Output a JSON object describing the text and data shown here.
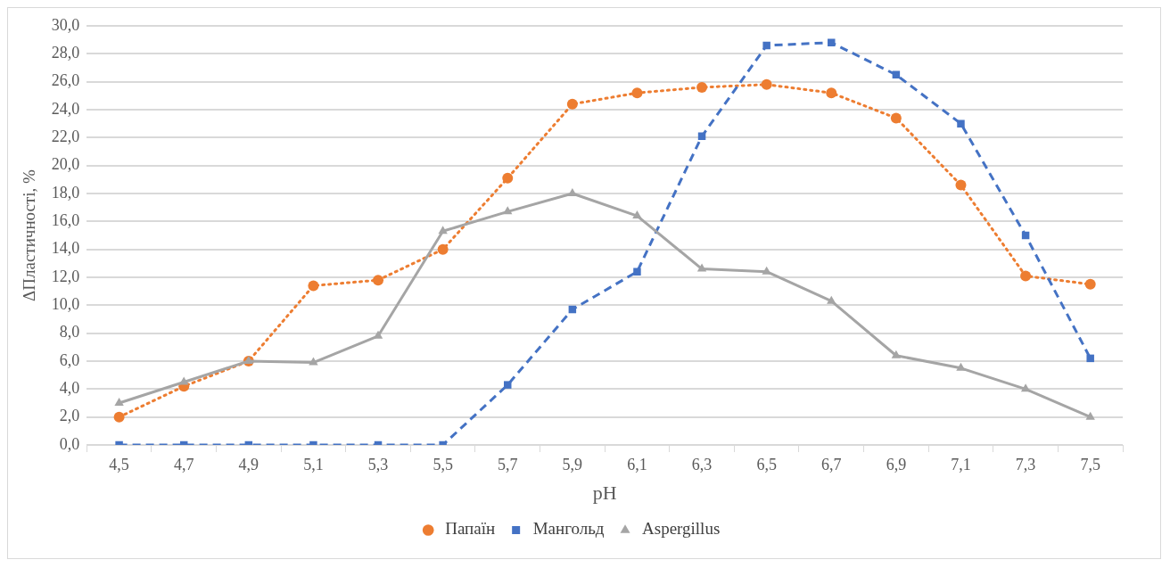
{
  "chart_data": {
    "type": "line",
    "xlabel": "pH",
    "ylabel": "ΔПластичності, %",
    "categories": [
      "4,5",
      "4,7",
      "4,9",
      "5,1",
      "5,3",
      "5,5",
      "5,7",
      "5,9",
      "6,1",
      "6,3",
      "6,5",
      "6,7",
      "6,9",
      "7,1",
      "7,3",
      "7,5"
    ],
    "series": [
      {
        "name": "Папаїн",
        "color": "#ed7d31",
        "marker": "circle",
        "line_style": "dotted",
        "values": [
          2.0,
          4.2,
          6.0,
          11.4,
          11.8,
          14.0,
          19.1,
          24.4,
          25.2,
          25.6,
          25.8,
          25.2,
          23.4,
          18.6,
          12.1,
          11.5
        ]
      },
      {
        "name": "Мангольд",
        "color": "#4472c4",
        "marker": "square",
        "line_style": "dashed",
        "values": [
          0,
          0,
          0,
          0,
          0,
          0,
          4.3,
          9.7,
          12.4,
          22.1,
          28.6,
          28.8,
          26.5,
          23.0,
          15.0,
          6.2
        ]
      },
      {
        "name": "Aspergillus",
        "color": "#a5a5a5",
        "marker": "triangle",
        "line_style": "solid",
        "values": [
          3.0,
          4.5,
          6.0,
          5.9,
          7.8,
          15.3,
          16.7,
          18.0,
          16.4,
          12.6,
          12.4,
          10.3,
          6.4,
          5.5,
          4.0,
          2.0
        ]
      }
    ],
    "ylim": [
      0,
      30
    ],
    "yticks": [
      {
        "value": 0,
        "label": "0,0"
      },
      {
        "value": 2,
        "label": "2,0"
      },
      {
        "value": 4,
        "label": "4,0"
      },
      {
        "value": 6,
        "label": "6,0"
      },
      {
        "value": 8,
        "label": "8,0"
      },
      {
        "value": 10,
        "label": "10,0"
      },
      {
        "value": 12,
        "label": "12,0"
      },
      {
        "value": 14,
        "label": "14,0"
      },
      {
        "value": 16,
        "label": "16,0"
      },
      {
        "value": 18,
        "label": "18,0"
      },
      {
        "value": 20,
        "label": "20,0"
      },
      {
        "value": 22,
        "label": "22,0"
      },
      {
        "value": 24,
        "label": "24,0"
      },
      {
        "value": 26,
        "label": "26,0"
      },
      {
        "value": 28,
        "label": "28,0"
      },
      {
        "value": 30,
        "label": "30,0"
      }
    ],
    "grid": "y",
    "legend": "bottom"
  }
}
